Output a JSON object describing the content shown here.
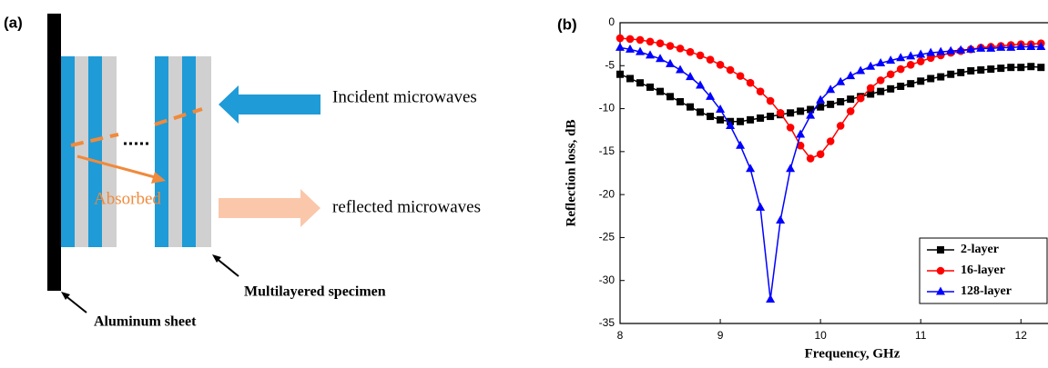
{
  "diagram": {
    "panel_a": "(a)",
    "panel_b": "(b)",
    "incident": "Incident microwaves",
    "absorbed": "Absorbed",
    "reflected": "reflected microwaves",
    "specimen": "Multilayered specimen",
    "aluminum": "Aluminum sheet"
  },
  "chart_data": {
    "type": "line",
    "x_label": "Frequency, GHz",
    "y_label": "Reflection loss, dB",
    "x": [
      8.0,
      8.1,
      8.2,
      8.3,
      8.4,
      8.5,
      8.6,
      8.7,
      8.8,
      8.9,
      9.0,
      9.1,
      9.2,
      9.3,
      9.4,
      9.5,
      9.6,
      9.7,
      9.8,
      9.9,
      10.0,
      10.1,
      10.2,
      10.3,
      10.4,
      10.5,
      10.6,
      10.7,
      10.8,
      10.9,
      11.0,
      11.1,
      11.2,
      11.3,
      11.4,
      11.5,
      11.6,
      11.7,
      11.8,
      11.9,
      12.0,
      12.1,
      12.2
    ],
    "series": [
      {
        "name": "2-layer",
        "color": "#000000",
        "marker": "square",
        "values": [
          -6,
          -6.5,
          -7,
          -7.5,
          -8,
          -8.6,
          -9.2,
          -9.8,
          -10.4,
          -10.9,
          -11.3,
          -11.5,
          -11.5,
          -11.3,
          -11.1,
          -10.9,
          -10.7,
          -10.5,
          -10.3,
          -10.1,
          -9.8,
          -9.5,
          -9.2,
          -8.9,
          -8.6,
          -8.3,
          -8.0,
          -7.7,
          -7.4,
          -7.1,
          -6.8,
          -6.5,
          -6.3,
          -6.0,
          -5.8,
          -5.6,
          -5.5,
          -5.4,
          -5.3,
          -5.2,
          -5.2,
          -5.1,
          -5.2
        ]
      },
      {
        "name": "16-layer",
        "color": "#ff0000",
        "marker": "circle",
        "values": [
          -1.8,
          -1.9,
          -2.0,
          -2.2,
          -2.4,
          -2.7,
          -3.0,
          -3.4,
          -3.8,
          -4.3,
          -4.9,
          -5.5,
          -6.2,
          -7.0,
          -8.0,
          -9.1,
          -10.5,
          -12.2,
          -14.3,
          -15.8,
          -15.3,
          -13.8,
          -12.0,
          -10.3,
          -8.8,
          -7.6,
          -6.7,
          -6.0,
          -5.4,
          -4.9,
          -4.5,
          -4.1,
          -3.8,
          -3.5,
          -3.3,
          -3.1,
          -2.9,
          -2.8,
          -2.7,
          -2.6,
          -2.5,
          -2.5,
          -2.4
        ]
      },
      {
        "name": "128-layer",
        "color": "#0000ff",
        "marker": "triangle",
        "values": [
          -2.9,
          -3.1,
          -3.4,
          -3.8,
          -4.2,
          -4.8,
          -5.5,
          -6.3,
          -7.3,
          -8.6,
          -10.1,
          -12.0,
          -14.3,
          -17.0,
          -21.5,
          -32.2,
          -23.0,
          -17.0,
          -13.0,
          -10.8,
          -9.0,
          -7.8,
          -6.9,
          -6.2,
          -5.6,
          -5.1,
          -4.7,
          -4.4,
          -4.1,
          -3.9,
          -3.7,
          -3.5,
          -3.4,
          -3.3,
          -3.2,
          -3.1,
          -3.0,
          -3.0,
          -2.9,
          -2.9,
          -2.8,
          -2.8,
          -2.8
        ]
      }
    ],
    "xlim": [
      8,
      12.27
    ],
    "ylim": [
      -35,
      0
    ],
    "xticks": [
      8,
      9,
      10,
      11,
      12
    ],
    "yticks": [
      0,
      -5,
      -10,
      -15,
      -20,
      -25,
      -30,
      -35
    ],
    "legend": "lower right"
  }
}
